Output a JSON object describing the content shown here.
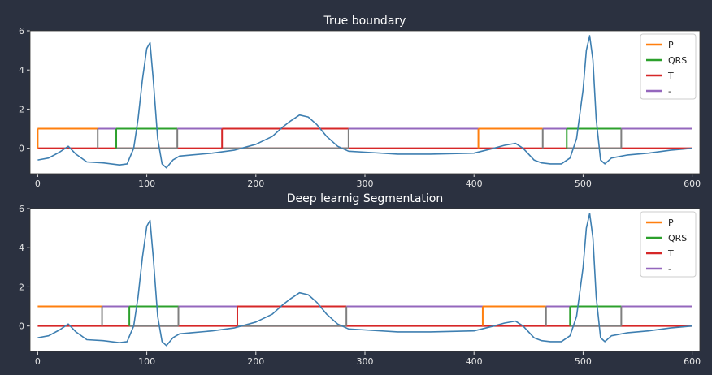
{
  "colors": {
    "background": "#2b3140",
    "plot_bg": "#ffffff",
    "signal": "#3e7fb1",
    "P": "#ff7f0e",
    "QRS": "#2ca02c",
    "T": "#d62728",
    "none": "#9467bd",
    "transition": "#7f7f7f"
  },
  "chart_data": [
    {
      "type": "line",
      "title": "True boundary",
      "xlim": [
        -7,
        607
      ],
      "ylim": [
        -1.3,
        6.0
      ],
      "xticks": [
        0,
        100,
        200,
        300,
        400,
        500,
        600
      ],
      "yticks": [
        0,
        2,
        4,
        6
      ],
      "legend_position": "top-right",
      "legend": [
        "P",
        "QRS",
        "T",
        "-"
      ],
      "segments": [
        {
          "label": "-",
          "start": 0,
          "end": 55
        },
        {
          "label": "P",
          "start": 0,
          "end": 55
        },
        {
          "label": "-",
          "start": 55,
          "end": 72
        },
        {
          "label": "QRS",
          "start": 72,
          "end": 128
        },
        {
          "label": "-",
          "start": 128,
          "end": 169
        },
        {
          "label": "T",
          "start": 169,
          "end": 285
        },
        {
          "label": "-",
          "start": 285,
          "end": 404
        },
        {
          "label": "P",
          "start": 404,
          "end": 463
        },
        {
          "label": "-",
          "start": 463,
          "end": 485
        },
        {
          "label": "QRS",
          "start": 485,
          "end": 535
        },
        {
          "label": "-",
          "start": 535,
          "end": 600
        }
      ],
      "signal": {
        "x": [
          0,
          10,
          20,
          28,
          35,
          45,
          60,
          75,
          82,
          88,
          92,
          96,
          100,
          103,
          106,
          110,
          114,
          118,
          124,
          130,
          140,
          160,
          180,
          200,
          215,
          225,
          232,
          240,
          248,
          256,
          265,
          275,
          285,
          300,
          330,
          360,
          400,
          418,
          428,
          438,
          445,
          455,
          462,
          470,
          480,
          488,
          494,
          500,
          503,
          506,
          509,
          512,
          516,
          520,
          526,
          540,
          560,
          580,
          600
        ],
        "y": [
          -0.6,
          -0.5,
          -0.2,
          0.1,
          -0.3,
          -0.7,
          -0.75,
          -0.85,
          -0.8,
          0.0,
          1.5,
          3.5,
          5.1,
          5.4,
          3.5,
          0.5,
          -0.8,
          -1.0,
          -0.6,
          -0.4,
          -0.35,
          -0.25,
          -0.1,
          0.2,
          0.6,
          1.1,
          1.4,
          1.7,
          1.6,
          1.2,
          0.6,
          0.1,
          -0.15,
          -0.2,
          -0.3,
          -0.3,
          -0.25,
          0.0,
          0.15,
          0.25,
          0.0,
          -0.6,
          -0.75,
          -0.8,
          -0.8,
          -0.5,
          0.5,
          3.0,
          5.0,
          5.75,
          4.5,
          1.5,
          -0.6,
          -0.8,
          -0.5,
          -0.35,
          -0.25,
          -0.1,
          0.0
        ]
      }
    },
    {
      "type": "line",
      "title": "Deep learnig Segmentation",
      "xlim": [
        -7,
        607
      ],
      "ylim": [
        -1.3,
        6.0
      ],
      "xticks": [
        0,
        100,
        200,
        300,
        400,
        500,
        600
      ],
      "yticks": [
        0,
        2,
        4,
        6
      ],
      "legend_position": "top-right",
      "legend": [
        "P",
        "QRS",
        "T",
        "-"
      ],
      "segments": [
        {
          "label": "P",
          "start": 0,
          "end": 59
        },
        {
          "label": "-",
          "start": 59,
          "end": 84
        },
        {
          "label": "QRS",
          "start": 84,
          "end": 129
        },
        {
          "label": "-",
          "start": 129,
          "end": 183
        },
        {
          "label": "T",
          "start": 183,
          "end": 283
        },
        {
          "label": "-",
          "start": 283,
          "end": 408
        },
        {
          "label": "P",
          "start": 408,
          "end": 466
        },
        {
          "label": "-",
          "start": 466,
          "end": 488
        },
        {
          "label": "QRS",
          "start": 488,
          "end": 535
        },
        {
          "label": "-",
          "start": 535,
          "end": 600
        }
      ],
      "signal": {
        "x": [
          0,
          10,
          20,
          28,
          35,
          45,
          60,
          75,
          82,
          88,
          92,
          96,
          100,
          103,
          106,
          110,
          114,
          118,
          124,
          130,
          140,
          160,
          180,
          200,
          215,
          225,
          232,
          240,
          248,
          256,
          265,
          275,
          285,
          300,
          330,
          360,
          400,
          418,
          428,
          438,
          445,
          455,
          462,
          470,
          480,
          488,
          494,
          500,
          503,
          506,
          509,
          512,
          516,
          520,
          526,
          540,
          560,
          580,
          600
        ],
        "y": [
          -0.6,
          -0.5,
          -0.2,
          0.1,
          -0.3,
          -0.7,
          -0.75,
          -0.85,
          -0.8,
          0.0,
          1.5,
          3.5,
          5.1,
          5.4,
          3.5,
          0.5,
          -0.8,
          -1.0,
          -0.6,
          -0.4,
          -0.35,
          -0.25,
          -0.1,
          0.2,
          0.6,
          1.1,
          1.4,
          1.7,
          1.6,
          1.2,
          0.6,
          0.1,
          -0.15,
          -0.2,
          -0.3,
          -0.3,
          -0.25,
          0.0,
          0.15,
          0.25,
          0.0,
          -0.6,
          -0.75,
          -0.8,
          -0.8,
          -0.5,
          0.5,
          3.0,
          5.0,
          5.75,
          4.5,
          1.5,
          -0.6,
          -0.8,
          -0.5,
          -0.35,
          -0.25,
          -0.1,
          0.0
        ]
      }
    }
  ]
}
